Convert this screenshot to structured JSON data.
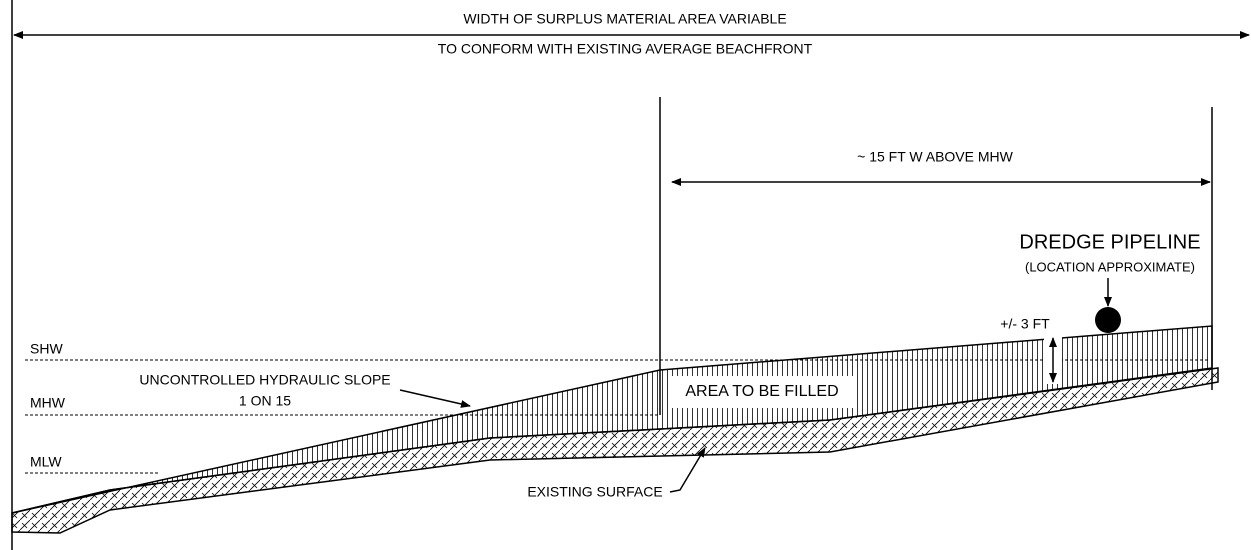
{
  "title_line1": "WIDTH OF SURPLUS MATERIAL AREA VARIABLE",
  "title_line2": "TO CONFORM WITH EXISTING AVERAGE BEACHFRONT",
  "width_label": "~ 15 FT W ABOVE MHW",
  "pipeline": {
    "label": "DREDGE PIPELINE",
    "note": "(LOCATION APPROXIMATE)"
  },
  "depth_label": "+/- 3 FT",
  "levels": [
    "SHW",
    "MHW",
    "MLW"
  ],
  "slope": {
    "line1": "UNCONTROLLED HYDRAULIC SLOPE",
    "line2": "1 ON 15"
  },
  "fill_label": "AREA TO BE FILLED",
  "surface_label": "EXISTING SURFACE"
}
